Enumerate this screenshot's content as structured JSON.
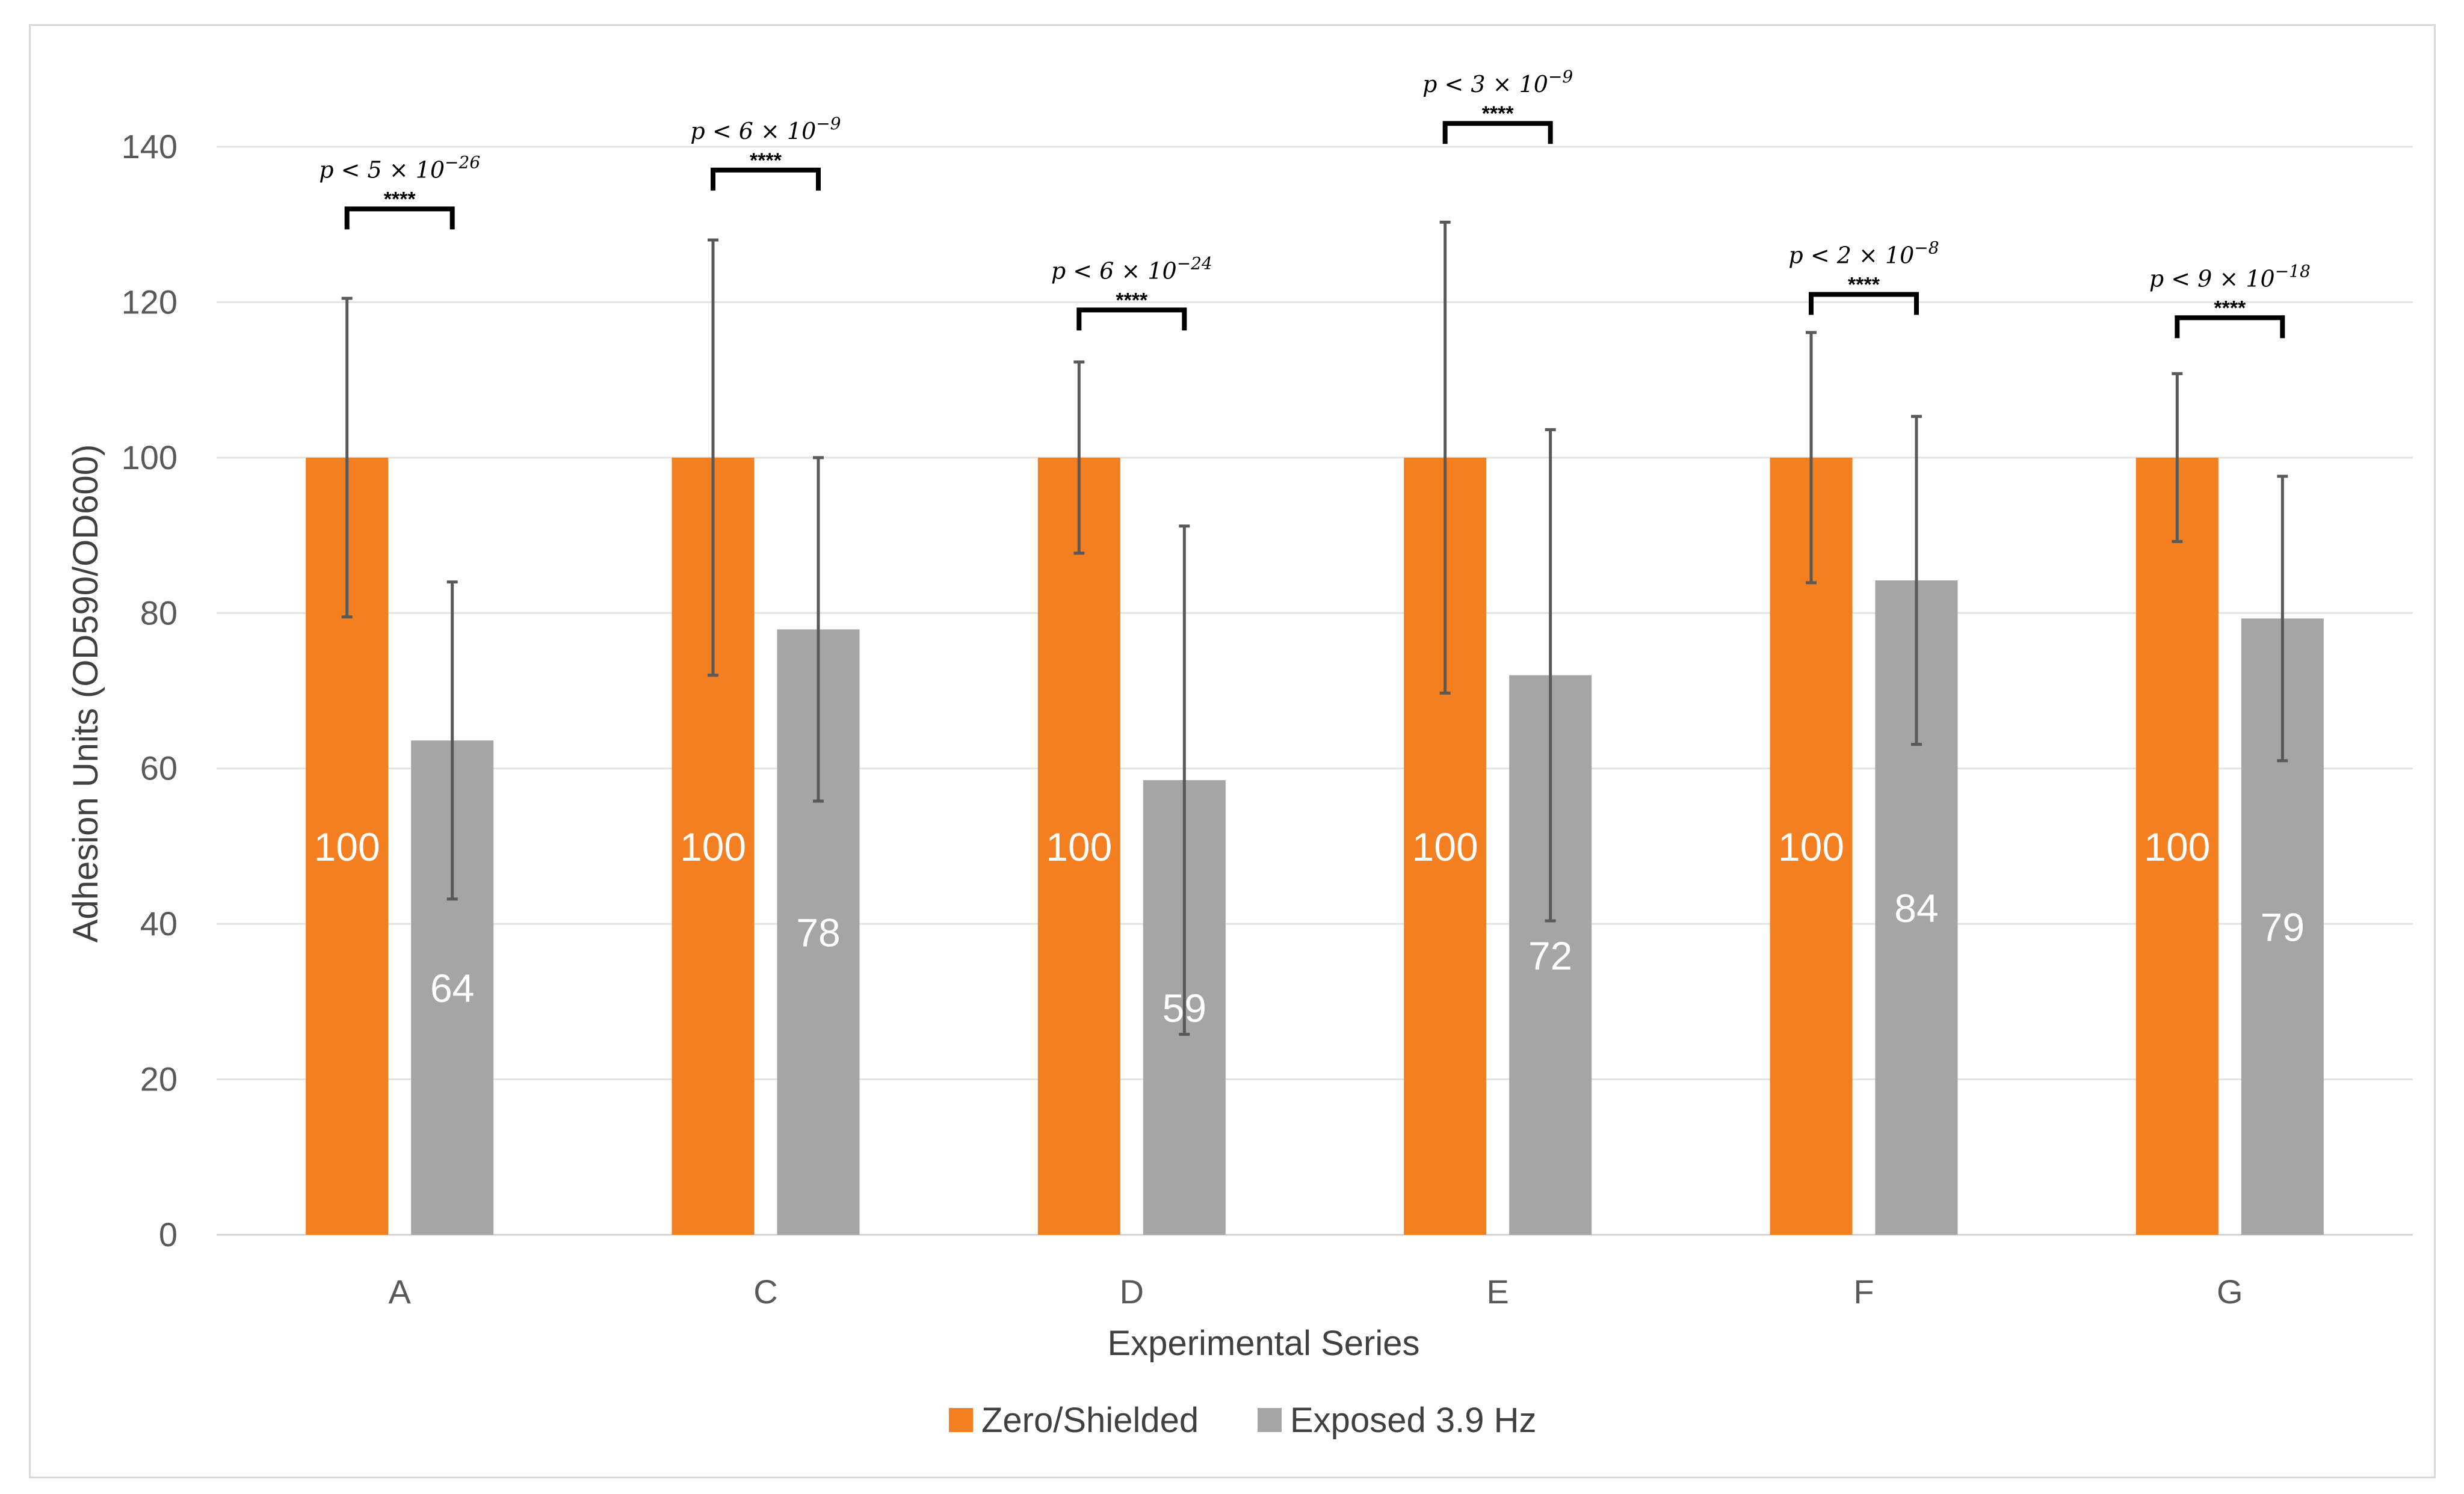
{
  "chart_data": {
    "type": "bar",
    "title": "",
    "xlabel": "Experimental Series",
    "ylabel": "Adhesion Units (OD590/OD600)",
    "ylim": [
      0,
      140
    ],
    "yticks": [
      0,
      20,
      40,
      60,
      80,
      100,
      120,
      140
    ],
    "grid": true,
    "legend_position": "bottom",
    "categories": [
      "A",
      "C",
      "D",
      "E",
      "F",
      "G"
    ],
    "series": [
      {
        "name": "Zero/Shielded",
        "color": "#F47F20",
        "values": [
          100,
          100,
          100,
          100,
          100,
          100
        ],
        "labels": [
          "100",
          "100",
          "100",
          "100",
          "100",
          "100"
        ],
        "error": [
          20.5,
          28,
          12.3,
          30.3,
          16.1,
          10.8
        ]
      },
      {
        "name": "Exposed 3.9 Hz",
        "color": "#A5A5A5",
        "values": [
          63.6,
          77.9,
          58.5,
          72.0,
          84.2,
          79.3
        ],
        "labels": [
          "64",
          "78",
          "59",
          "72",
          "84",
          "79"
        ],
        "error": [
          20.4,
          22.1,
          32.7,
          31.6,
          21.1,
          18.3
        ]
      }
    ],
    "annotations": [
      {
        "category": "A",
        "mantissa": "5",
        "exponent": "−26",
        "stars": "****",
        "bracket_y": 132
      },
      {
        "category": "C",
        "mantissa": "6",
        "exponent": "−9",
        "stars": "****",
        "bracket_y": 137
      },
      {
        "category": "D",
        "mantissa": "6",
        "exponent": "−24",
        "stars": "****",
        "bracket_y": 119
      },
      {
        "category": "E",
        "mantissa": "3",
        "exponent": "−9",
        "stars": "****",
        "bracket_y": 143
      },
      {
        "category": "F",
        "mantissa": "2",
        "exponent": "−8",
        "stars": "****",
        "bracket_y": 121
      },
      {
        "category": "G",
        "mantissa": "9",
        "exponent": "−18",
        "stars": "****",
        "bracket_y": 118
      }
    ]
  }
}
